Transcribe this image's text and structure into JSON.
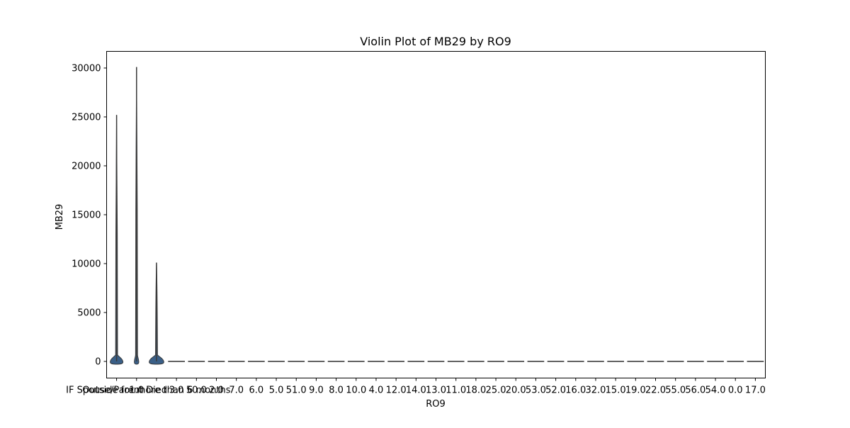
{
  "chart_data": {
    "type": "violin",
    "title": "Violin Plot of MB29 by RO9",
    "xlabel": "RO9",
    "ylabel": "MB29",
    "ylim": [
      -1700,
      31700
    ],
    "yticks": [
      0,
      5000,
      10000,
      15000,
      20000,
      25000,
      30000
    ],
    "categories": [
      "IF Spouse/Parent Died",
      "1.0",
      "Outside for more than 6 months",
      "3.0",
      "50.0",
      "2.0",
      "7.0",
      "6.0",
      "5.0",
      "51.0",
      "9.0",
      "8.0",
      "10.0",
      "4.0",
      "12.0",
      "14.0",
      "13.0",
      "11.0",
      "18.0",
      "25.0",
      "20.0",
      "53.0",
      "52.0",
      "16.0",
      "32.0",
      "15.0",
      "19.0",
      "22.0",
      "55.0",
      "56.0",
      "54.0",
      "0.0",
      "17.0"
    ],
    "series": [
      {
        "violins": [
          {
            "min": 0,
            "max": 25200,
            "bulge": 1.0
          },
          {
            "min": 0,
            "max": 30100,
            "bulge": 0.35
          },
          {
            "min": 0,
            "max": 10100,
            "bulge": 1.15
          }
        ],
        "flat_value": 0,
        "color": "#3a5f87"
      }
    ],
    "grid": false,
    "legend": false
  }
}
